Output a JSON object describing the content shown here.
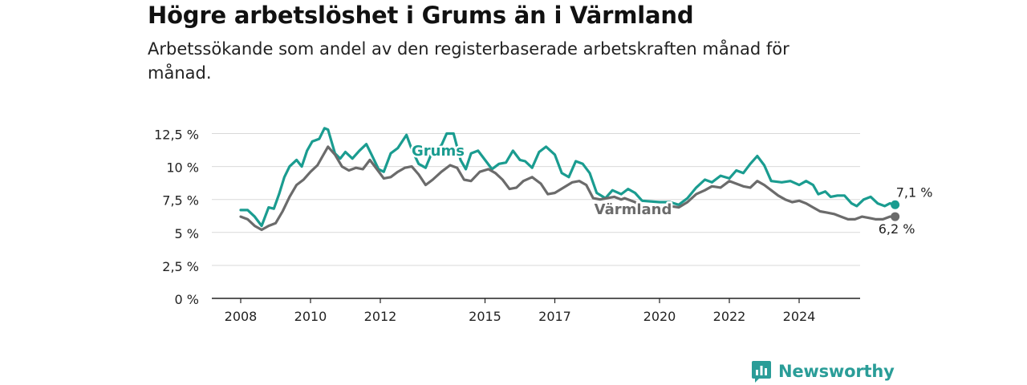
{
  "header": {
    "title": "Högre arbetslöshet i Grums än i Värmland",
    "subtitle": "Arbetssökande som andel av den registerbaserade arbetskraften månad för månad."
  },
  "brand": {
    "name": "Newsworthy",
    "icon": "bar-chart-icon",
    "color": "#2a9d98"
  },
  "chart_data": {
    "type": "line",
    "xlim": [
      2008.0,
      2025.6
    ],
    "ylim": [
      0,
      13.2
    ],
    "yticks": [
      0,
      2.5,
      5,
      7.5,
      10,
      12.5
    ],
    "ytick_labels": [
      "0 %",
      "2,5 %",
      "5 %",
      "7,5 %",
      "10 %",
      "12,5 %"
    ],
    "xticks": [
      2008,
      2010,
      2012,
      2015,
      2017,
      2020,
      2022,
      2024
    ],
    "xtick_labels": [
      "2008",
      "2010",
      "2012",
      "2015",
      "2017",
      "2020",
      "2022",
      "2024"
    ],
    "grid": true,
    "series": [
      {
        "name": "Grums",
        "color": "#1a9c90",
        "end_label": "7,1 %",
        "points": [
          [
            2008.0,
            6.7
          ],
          [
            2008.2,
            6.7
          ],
          [
            2008.4,
            6.2
          ],
          [
            2008.6,
            5.5
          ],
          [
            2008.8,
            6.9
          ],
          [
            2008.95,
            6.8
          ],
          [
            2009.1,
            7.9
          ],
          [
            2009.25,
            9.2
          ],
          [
            2009.4,
            10.0
          ],
          [
            2009.6,
            10.5
          ],
          [
            2009.75,
            10.0
          ],
          [
            2009.9,
            11.2
          ],
          [
            2010.05,
            11.9
          ],
          [
            2010.25,
            12.1
          ],
          [
            2010.4,
            12.9
          ],
          [
            2010.5,
            12.8
          ],
          [
            2010.7,
            11.0
          ],
          [
            2010.85,
            10.6
          ],
          [
            2011.0,
            11.1
          ],
          [
            2011.2,
            10.6
          ],
          [
            2011.4,
            11.2
          ],
          [
            2011.6,
            11.7
          ],
          [
            2011.75,
            10.9
          ],
          [
            2011.95,
            9.8
          ],
          [
            2012.1,
            9.6
          ],
          [
            2012.3,
            11.0
          ],
          [
            2012.5,
            11.4
          ],
          [
            2012.75,
            12.4
          ],
          [
            2012.9,
            11.3
          ],
          [
            2013.1,
            10.2
          ],
          [
            2013.3,
            9.9
          ],
          [
            2013.5,
            11.2
          ],
          [
            2013.75,
            11.6
          ],
          [
            2013.9,
            12.5
          ],
          [
            2014.1,
            12.5
          ],
          [
            2014.3,
            10.5
          ],
          [
            2014.45,
            9.8
          ],
          [
            2014.6,
            11.0
          ],
          [
            2014.8,
            11.2
          ],
          [
            2015.0,
            10.5
          ],
          [
            2015.2,
            9.8
          ],
          [
            2015.4,
            10.2
          ],
          [
            2015.6,
            10.3
          ],
          [
            2015.8,
            11.2
          ],
          [
            2016.0,
            10.5
          ],
          [
            2016.15,
            10.4
          ],
          [
            2016.35,
            9.9
          ],
          [
            2016.55,
            11.1
          ],
          [
            2016.75,
            11.5
          ],
          [
            2017.0,
            10.9
          ],
          [
            2017.2,
            9.5
          ],
          [
            2017.4,
            9.2
          ],
          [
            2017.6,
            10.4
          ],
          [
            2017.8,
            10.2
          ],
          [
            2018.0,
            9.5
          ],
          [
            2018.2,
            8.0
          ],
          [
            2018.45,
            7.6
          ],
          [
            2018.65,
            8.2
          ],
          [
            2018.9,
            7.9
          ],
          [
            2019.1,
            8.3
          ],
          [
            2019.3,
            8.0
          ],
          [
            2019.5,
            7.4
          ],
          [
            2020.0,
            7.3
          ],
          [
            2020.3,
            7.3
          ],
          [
            2020.55,
            7.1
          ],
          [
            2020.8,
            7.6
          ],
          [
            2021.05,
            8.4
          ],
          [
            2021.3,
            9.0
          ],
          [
            2021.5,
            8.8
          ],
          [
            2021.75,
            9.3
          ],
          [
            2022.0,
            9.1
          ],
          [
            2022.2,
            9.7
          ],
          [
            2022.4,
            9.5
          ],
          [
            2022.6,
            10.2
          ],
          [
            2022.8,
            10.8
          ],
          [
            2023.0,
            10.1
          ],
          [
            2023.2,
            8.9
          ],
          [
            2023.5,
            8.8
          ],
          [
            2023.75,
            8.9
          ],
          [
            2024.0,
            8.6
          ],
          [
            2024.2,
            8.9
          ],
          [
            2024.4,
            8.6
          ],
          [
            2024.55,
            7.9
          ],
          [
            2024.75,
            8.1
          ],
          [
            2024.9,
            7.7
          ],
          [
            2025.1,
            7.8
          ],
          [
            2025.3,
            7.8
          ],
          [
            2025.5,
            7.2
          ],
          [
            2025.65,
            7.0
          ],
          [
            2025.85,
            7.5
          ],
          [
            2026.05,
            7.7
          ],
          [
            2026.25,
            7.2
          ],
          [
            2026.45,
            7.0
          ],
          [
            2026.6,
            7.2
          ],
          [
            2026.75,
            7.1
          ]
        ]
      },
      {
        "name": "Värmland",
        "color": "#6b6b6b",
        "end_label": "6,2 %",
        "points": [
          [
            2008.0,
            6.2
          ],
          [
            2008.2,
            6.0
          ],
          [
            2008.4,
            5.5
          ],
          [
            2008.6,
            5.2
          ],
          [
            2008.8,
            5.5
          ],
          [
            2009.0,
            5.7
          ],
          [
            2009.2,
            6.6
          ],
          [
            2009.4,
            7.7
          ],
          [
            2009.6,
            8.6
          ],
          [
            2009.8,
            9.0
          ],
          [
            2010.0,
            9.6
          ],
          [
            2010.2,
            10.1
          ],
          [
            2010.35,
            10.8
          ],
          [
            2010.5,
            11.5
          ],
          [
            2010.7,
            10.9
          ],
          [
            2010.9,
            10.0
          ],
          [
            2011.1,
            9.7
          ],
          [
            2011.3,
            9.9
          ],
          [
            2011.5,
            9.8
          ],
          [
            2011.7,
            10.5
          ],
          [
            2011.9,
            9.8
          ],
          [
            2012.1,
            9.1
          ],
          [
            2012.3,
            9.2
          ],
          [
            2012.5,
            9.6
          ],
          [
            2012.7,
            9.9
          ],
          [
            2012.9,
            10.0
          ],
          [
            2013.1,
            9.4
          ],
          [
            2013.3,
            8.6
          ],
          [
            2013.5,
            9.0
          ],
          [
            2013.75,
            9.6
          ],
          [
            2014.0,
            10.1
          ],
          [
            2014.2,
            9.9
          ],
          [
            2014.4,
            9.0
          ],
          [
            2014.6,
            8.9
          ],
          [
            2014.85,
            9.6
          ],
          [
            2015.1,
            9.8
          ],
          [
            2015.3,
            9.5
          ],
          [
            2015.5,
            9.0
          ],
          [
            2015.7,
            8.3
          ],
          [
            2015.9,
            8.4
          ],
          [
            2016.1,
            8.9
          ],
          [
            2016.35,
            9.2
          ],
          [
            2016.6,
            8.7
          ],
          [
            2016.8,
            7.9
          ],
          [
            2017.0,
            8.0
          ],
          [
            2017.25,
            8.4
          ],
          [
            2017.5,
            8.8
          ],
          [
            2017.7,
            8.9
          ],
          [
            2017.9,
            8.6
          ],
          [
            2018.1,
            7.6
          ],
          [
            2018.3,
            7.5
          ],
          [
            2018.5,
            7.6
          ],
          [
            2018.7,
            7.7
          ],
          [
            2018.9,
            7.5
          ],
          [
            2019.0,
            7.6
          ],
          [
            2019.3,
            7.3
          ],
          [
            2019.5,
            6.9
          ],
          [
            2020.0,
            6.9
          ],
          [
            2020.3,
            7.0
          ],
          [
            2020.55,
            6.9
          ],
          [
            2020.8,
            7.3
          ],
          [
            2021.05,
            7.9
          ],
          [
            2021.3,
            8.2
          ],
          [
            2021.5,
            8.5
          ],
          [
            2021.75,
            8.4
          ],
          [
            2022.0,
            8.9
          ],
          [
            2022.2,
            8.7
          ],
          [
            2022.4,
            8.5
          ],
          [
            2022.6,
            8.4
          ],
          [
            2022.8,
            8.9
          ],
          [
            2023.0,
            8.6
          ],
          [
            2023.2,
            8.2
          ],
          [
            2023.4,
            7.8
          ],
          [
            2023.6,
            7.5
          ],
          [
            2023.8,
            7.3
          ],
          [
            2024.0,
            7.4
          ],
          [
            2024.2,
            7.2
          ],
          [
            2024.4,
            6.9
          ],
          [
            2024.6,
            6.6
          ],
          [
            2024.8,
            6.5
          ],
          [
            2025.0,
            6.4
          ],
          [
            2025.2,
            6.2
          ],
          [
            2025.4,
            6.0
          ],
          [
            2025.6,
            6.0
          ],
          [
            2025.8,
            6.2
          ],
          [
            2026.0,
            6.1
          ],
          [
            2026.2,
            6.0
          ],
          [
            2026.4,
            6.0
          ],
          [
            2026.6,
            6.2
          ],
          [
            2026.75,
            6.2
          ]
        ]
      }
    ]
  }
}
